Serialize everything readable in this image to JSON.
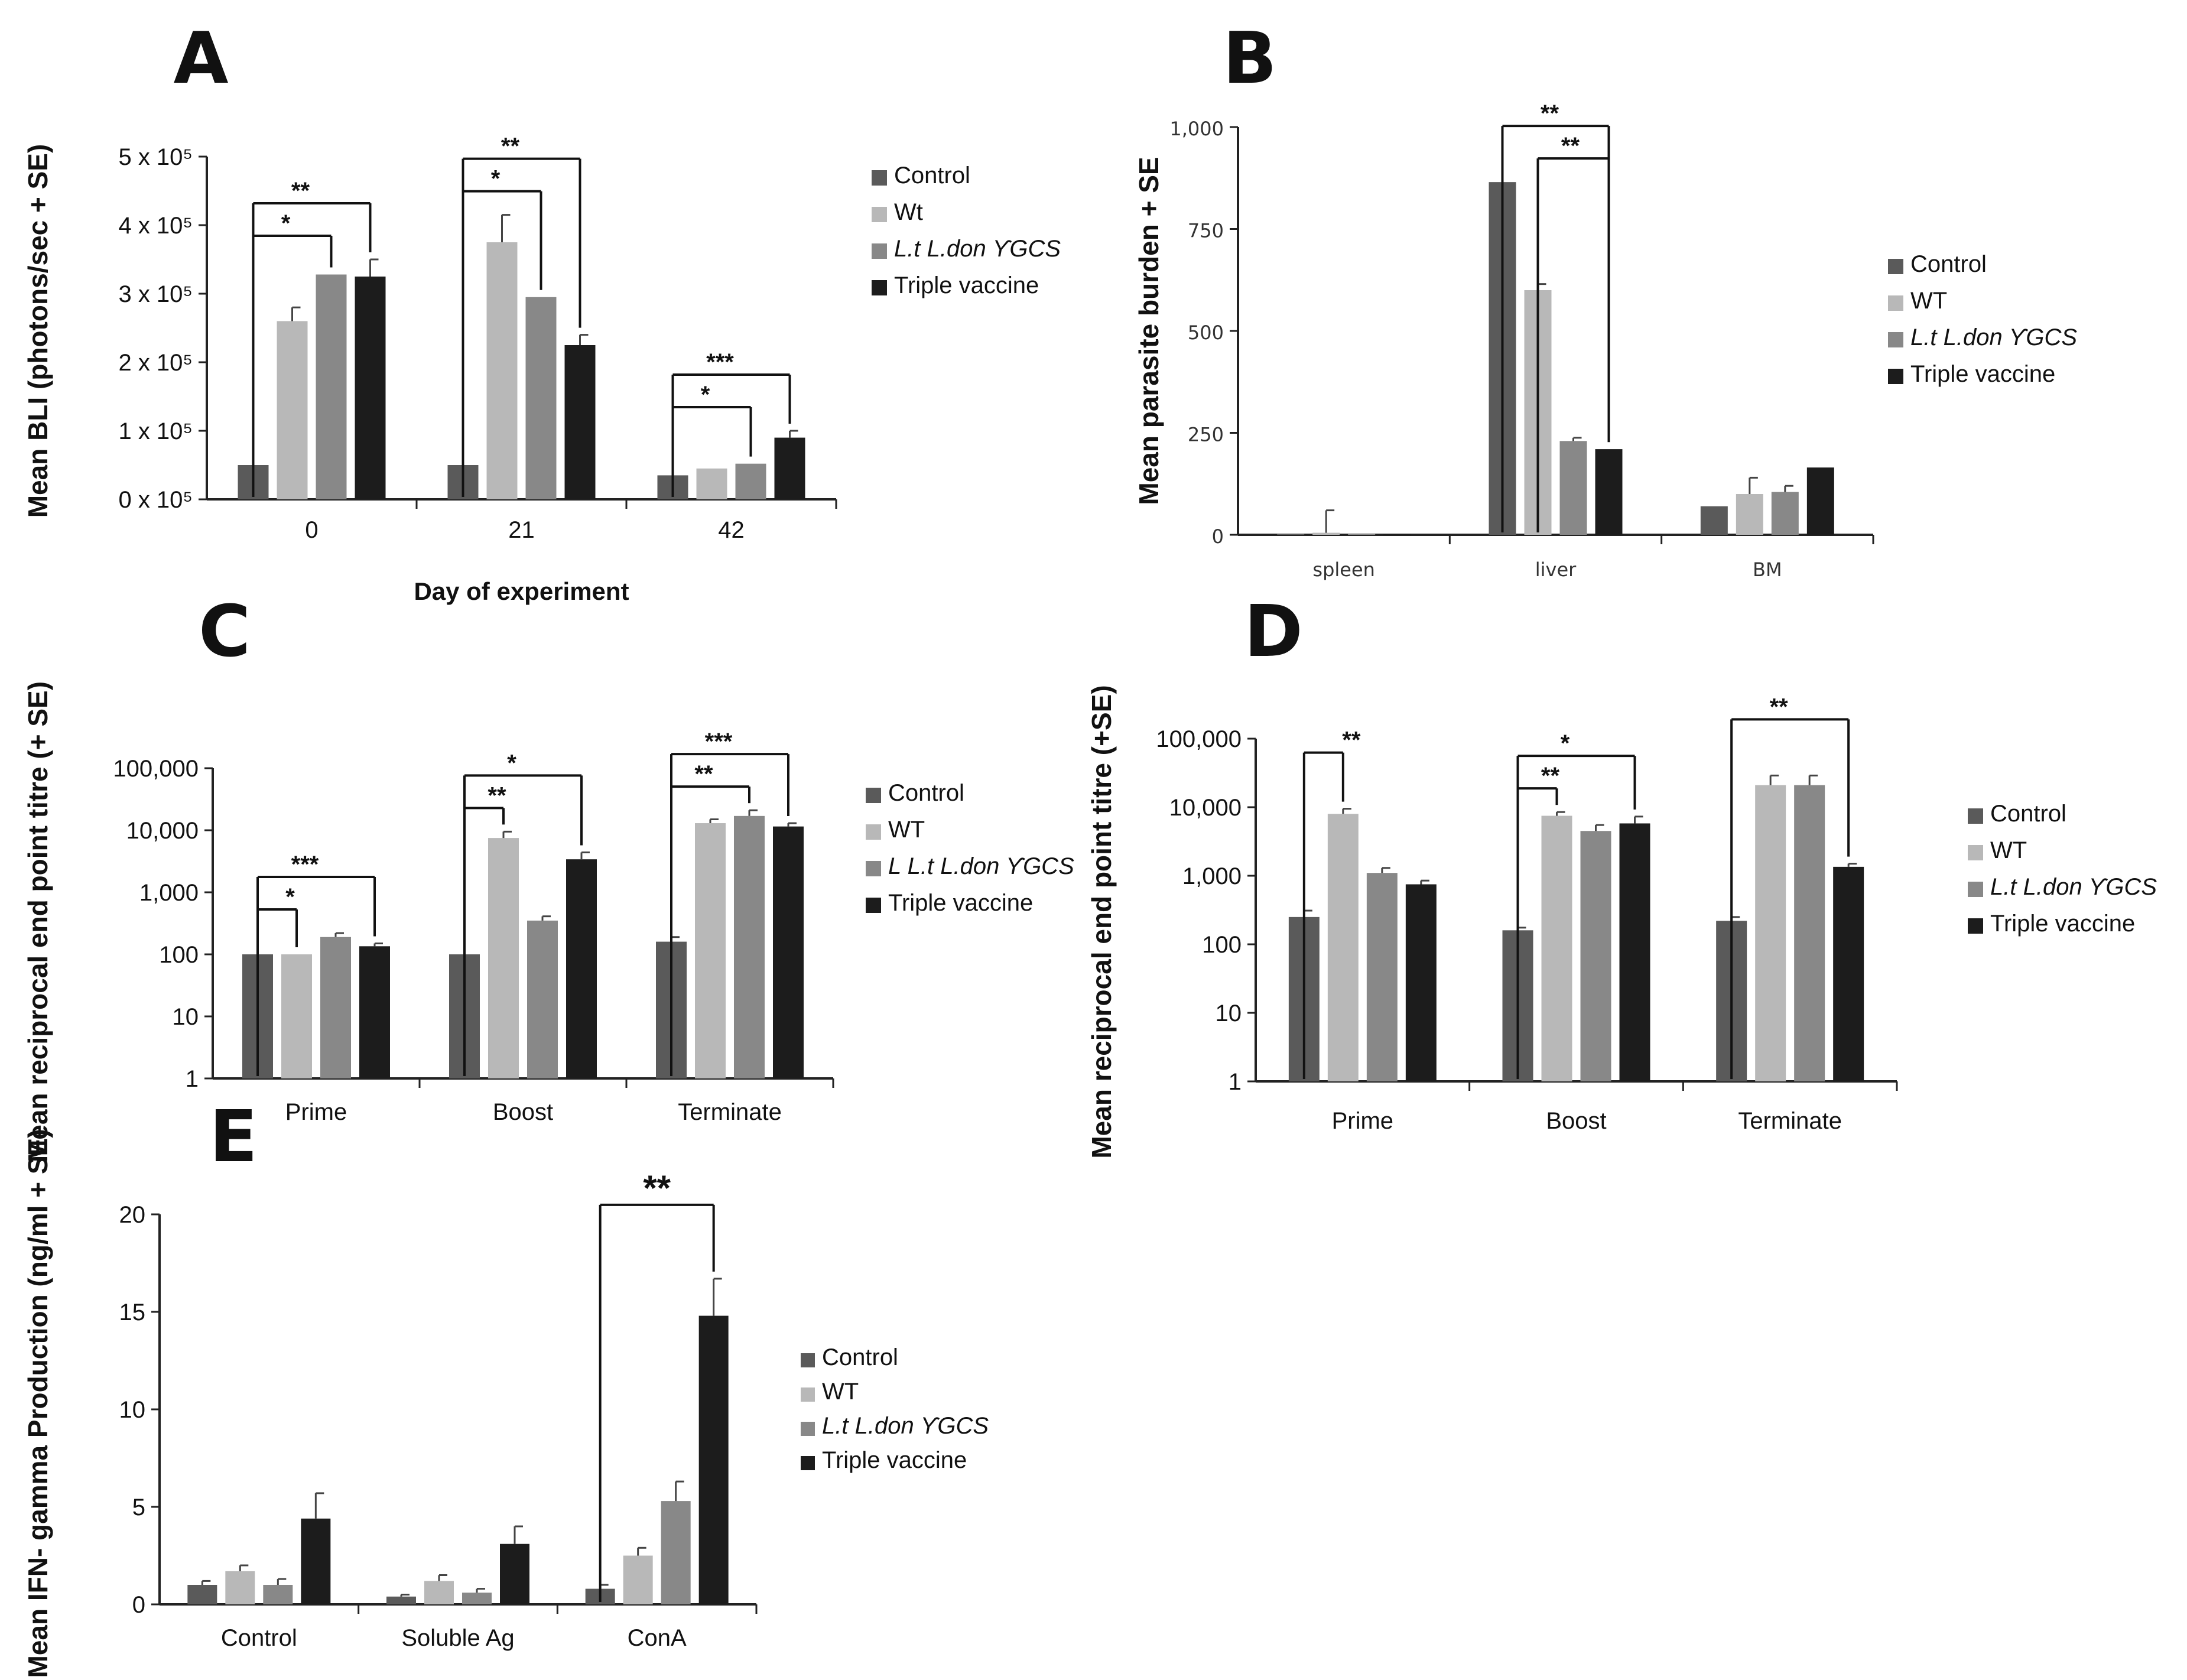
{
  "colors": {
    "Control": "#5a5a5a",
    "WT": "#b8b8b8",
    "Mutant": "#888888",
    "Triple": "#1c1c1c"
  },
  "chart_data": [
    {
      "id": "A",
      "panel_letter": "A",
      "type": "bar",
      "ylabel": "Mean BLI (photons/sec + SE)",
      "xlabel": "Day of experiment",
      "categories": [
        "0",
        "21",
        "42"
      ],
      "ylim": [
        0,
        500000
      ],
      "yticks": [
        0,
        100000,
        200000,
        300000,
        400000,
        500000
      ],
      "ytick_labels": [
        "0 x 10⁵",
        "1 x 10⁵",
        "2 x 10⁵",
        "3 x 10⁵",
        "4 x 10⁵",
        "5 x 10⁵"
      ],
      "legend": [
        "Control",
        "Wt",
        "L.t L.don ϒGCS",
        "Triple vaccine"
      ],
      "series": [
        {
          "name": "Control",
          "values": [
            50000,
            50000,
            35000
          ],
          "errors": [
            0,
            0,
            0
          ]
        },
        {
          "name": "Wt",
          "values": [
            260000,
            375000,
            45000
          ],
          "errors": [
            20000,
            40000,
            0
          ]
        },
        {
          "name": "L.t L.don ϒGCS",
          "values": [
            328000,
            295000,
            52000
          ],
          "errors": [
            0,
            0,
            0
          ]
        },
        {
          "name": "Triple vaccine",
          "values": [
            325000,
            225000,
            90000
          ],
          "errors": [
            25000,
            15000,
            10000
          ]
        }
      ],
      "significance": [
        {
          "group": 0,
          "from": 0,
          "to": 3,
          "label": "**",
          "level": 0
        },
        {
          "group": 0,
          "from": 0,
          "to": 2,
          "label": "*",
          "level": 1
        },
        {
          "group": 1,
          "from": 0,
          "to": 3,
          "label": "**",
          "level": 0
        },
        {
          "group": 1,
          "from": 0,
          "to": 2,
          "label": "*",
          "level": 1
        },
        {
          "group": 2,
          "from": 0,
          "to": 3,
          "label": "***",
          "level": 0
        },
        {
          "group": 2,
          "from": 0,
          "to": 2,
          "label": "*",
          "level": 1
        }
      ]
    },
    {
      "id": "B",
      "panel_letter": "B",
      "type": "bar",
      "ylabel": "Mean  parasite burden + SE",
      "xlabel": "",
      "categories": [
        "spleen",
        "liver",
        "BM"
      ],
      "ylim": [
        0,
        1000
      ],
      "yticks": [
        0,
        250,
        500,
        750,
        1000
      ],
      "ytick_labels": [
        "0",
        "250",
        "500",
        "750",
        "1,000"
      ],
      "legend": [
        "Control",
        "WT",
        "L.t L.don ϒGCS",
        "Triple vaccine"
      ],
      "series": [
        {
          "name": "Control",
          "values": [
            3,
            865,
            70
          ],
          "errors": [
            0,
            0,
            0
          ]
        },
        {
          "name": "WT",
          "values": [
            5,
            600,
            100
          ],
          "errors": [
            55,
            15,
            40
          ]
        },
        {
          "name": "L.t L.don ϒGCS",
          "values": [
            2,
            230,
            105
          ],
          "errors": [
            0,
            8,
            15
          ]
        },
        {
          "name": "Triple vaccine",
          "values": [
            1,
            210,
            165
          ],
          "errors": [
            0,
            0,
            0
          ]
        }
      ],
      "significance": [
        {
          "group": 1,
          "from": 0,
          "to": 3,
          "label": "**",
          "level": 0
        },
        {
          "group": 1,
          "from": 1,
          "to": 3,
          "label": "**",
          "level": 1
        }
      ]
    },
    {
      "id": "C",
      "panel_letter": "C",
      "type": "bar",
      "log": true,
      "ylabel": "Mean reciprocal end point titre (+ SE)",
      "xlabel": "",
      "categories": [
        "Prime",
        "Boost",
        "Terminate"
      ],
      "ylim": [
        1,
        100000
      ],
      "yticks": [
        1,
        10,
        100,
        1000,
        10000,
        100000
      ],
      "ytick_labels": [
        "1",
        "10",
        "100",
        "1,000",
        "10,000",
        "100,000"
      ],
      "legend": [
        "Control",
        "WT",
        "L L.t L.don ϒGCS",
        "Triple vaccine"
      ],
      "series": [
        {
          "name": "Control",
          "values": [
            100,
            100,
            160
          ],
          "errors": [
            0,
            0,
            30
          ]
        },
        {
          "name": "WT",
          "values": [
            100,
            7500,
            13000
          ],
          "errors": [
            0,
            2000,
            2000
          ]
        },
        {
          "name": "L.t L.don ϒGCS",
          "values": [
            190,
            350,
            17000
          ],
          "errors": [
            30,
            60,
            4000
          ]
        },
        {
          "name": "Triple vaccine",
          "values": [
            135,
            3400,
            11500
          ],
          "errors": [
            15,
            1000,
            1500
          ]
        }
      ],
      "significance": [
        {
          "group": 0,
          "from": 0,
          "to": 3,
          "label": "***",
          "level": 0
        },
        {
          "group": 0,
          "from": 0,
          "to": 1,
          "label": "*",
          "level": 1
        },
        {
          "group": 1,
          "from": 0,
          "to": 3,
          "label": "*",
          "level": 0
        },
        {
          "group": 1,
          "from": 0,
          "to": 1,
          "label": "**",
          "level": 1
        },
        {
          "group": 2,
          "from": 0,
          "to": 3,
          "label": "***",
          "level": 0
        },
        {
          "group": 2,
          "from": 0,
          "to": 2,
          "label": "**",
          "level": 1
        }
      ]
    },
    {
      "id": "D",
      "panel_letter": "D",
      "type": "bar",
      "log": true,
      "ylabel": "Mean reciprocal end point titre  (+SE)",
      "xlabel": "",
      "categories": [
        "Prime",
        "Boost",
        "Terminate"
      ],
      "ylim": [
        1,
        100000
      ],
      "yticks": [
        1,
        10,
        100,
        1000,
        10000,
        100000
      ],
      "ytick_labels": [
        "1",
        "10",
        "100",
        "1,000",
        "10,000",
        "100,000"
      ],
      "legend": [
        "Control",
        "WT",
        "L.t L.don ϒGCS",
        "Triple vaccine"
      ],
      "series": [
        {
          "name": "Control",
          "values": [
            250,
            160,
            220
          ],
          "errors": [
            60,
            15,
            30
          ]
        },
        {
          "name": "WT",
          "values": [
            8000,
            7500,
            21000
          ],
          "errors": [
            1500,
            1000,
            8000
          ]
        },
        {
          "name": "L.t L.don ϒGCS",
          "values": [
            1100,
            4500,
            21000
          ],
          "errors": [
            200,
            1000,
            8000
          ]
        },
        {
          "name": "Triple vaccine",
          "values": [
            750,
            5800,
            1350
          ],
          "errors": [
            100,
            1500,
            150
          ]
        }
      ],
      "significance": [
        {
          "group": 0,
          "from": 0,
          "to": 1,
          "label": "**",
          "level": 0
        },
        {
          "group": 1,
          "from": 0,
          "to": 3,
          "label": "*",
          "level": 0
        },
        {
          "group": 1,
          "from": 0,
          "to": 1,
          "label": "**",
          "level": 1
        },
        {
          "group": 2,
          "from": 0,
          "to": 3,
          "label": "**",
          "level": 0
        }
      ]
    },
    {
      "id": "E",
      "panel_letter": "E",
      "type": "bar",
      "ylabel": "Mean IFN- gamma Production (ng/ml + SE)",
      "xlabel": "",
      "categories": [
        "Control",
        "Soluble Ag",
        "ConA"
      ],
      "ylim": [
        0,
        20
      ],
      "yticks": [
        0,
        5,
        10,
        15,
        20
      ],
      "ytick_labels": [
        "0",
        "5",
        "10",
        "15",
        "20"
      ],
      "legend": [
        "Control",
        "WT",
        "L.t L.don ϒGCS",
        "Triple vaccine"
      ],
      "series": [
        {
          "name": "Control",
          "values": [
            1.0,
            0.4,
            0.8
          ],
          "errors": [
            0.2,
            0.1,
            0.2
          ]
        },
        {
          "name": "WT",
          "values": [
            1.7,
            1.2,
            2.5
          ],
          "errors": [
            0.3,
            0.3,
            0.4
          ]
        },
        {
          "name": "L.t L.don ϒGCS",
          "values": [
            1.0,
            0.6,
            5.3
          ],
          "errors": [
            0.3,
            0.2,
            1.0
          ]
        },
        {
          "name": "Triple vaccine",
          "values": [
            4.4,
            3.1,
            14.8
          ],
          "errors": [
            1.3,
            0.9,
            1.9
          ]
        }
      ],
      "significance": [
        {
          "group": 2,
          "from": 0,
          "to": 3,
          "label": "**",
          "level": 0
        }
      ]
    }
  ]
}
